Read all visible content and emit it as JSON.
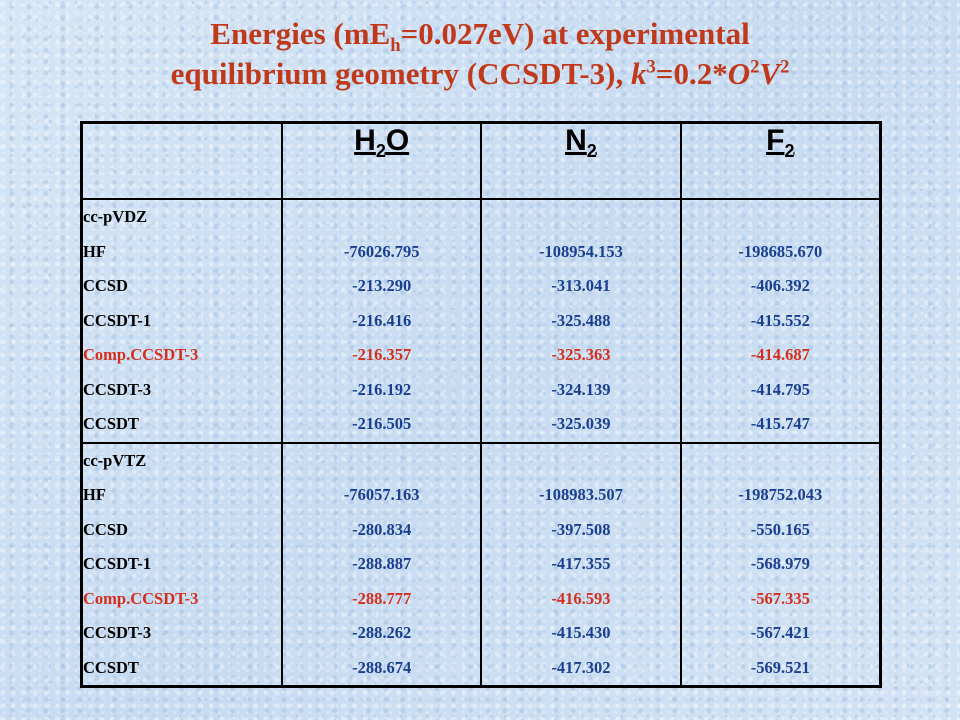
{
  "title": {
    "line1_a": "Energies (mE",
    "line1_sub": "h",
    "line1_b": "=0.027eV) at experimental",
    "line2_a": "equilibrium geometry (CCSDT-3), ",
    "line2_k": "k",
    "line2_k_sup": "3",
    "line2_mid": "=0.2*",
    "line2_O": "O",
    "line2_O_sup": "2",
    "line2_V": "V",
    "line2_V_sup": "2"
  },
  "columns": [
    {
      "base": "H",
      "sub1": "2",
      "rest": "O"
    },
    {
      "base": "N",
      "sub1": "2",
      "rest": ""
    },
    {
      "base": "F",
      "sub1": "2",
      "rest": ""
    }
  ],
  "blocks": [
    {
      "basis": "cc-pVDZ",
      "methods": [
        "HF",
        "CCSD",
        "CCSDT-1",
        "Comp.CCSDT-3",
        "CCSDT-3",
        "CCSDT"
      ],
      "values": [
        [
          "-76026.795",
          "-213.290",
          "-216.416",
          "-216.357",
          "-216.192",
          "-216.505"
        ],
        [
          "-108954.153",
          "-313.041",
          "-325.488",
          "-325.363",
          "-324.139",
          "-325.039"
        ],
        [
          "-198685.670",
          "-406.392",
          "-415.552",
          "-414.687",
          "-414.795",
          "-415.747"
        ]
      ]
    },
    {
      "basis": "cc-pVTZ",
      "methods": [
        "HF",
        "CCSD",
        "CCSDT-1",
        "Comp.CCSDT-3",
        "CCSDT-3",
        "CCSDT"
      ],
      "values": [
        [
          "-76057.163",
          "-280.834",
          "-288.887",
          "-288.777",
          "-288.262",
          "-288.674"
        ],
        [
          "-108983.507",
          "-397.508",
          "-417.355",
          "-416.593",
          "-415.430",
          "-417.302"
        ],
        [
          "-198752.043",
          "-550.165",
          "-568.979",
          "-567.335",
          "-567.421",
          "-569.521"
        ]
      ]
    }
  ],
  "colors": {
    "title": "#c0391b",
    "values": "#1b3f8f",
    "highlight": "#d32f1c",
    "background": "#cfe0f3"
  }
}
